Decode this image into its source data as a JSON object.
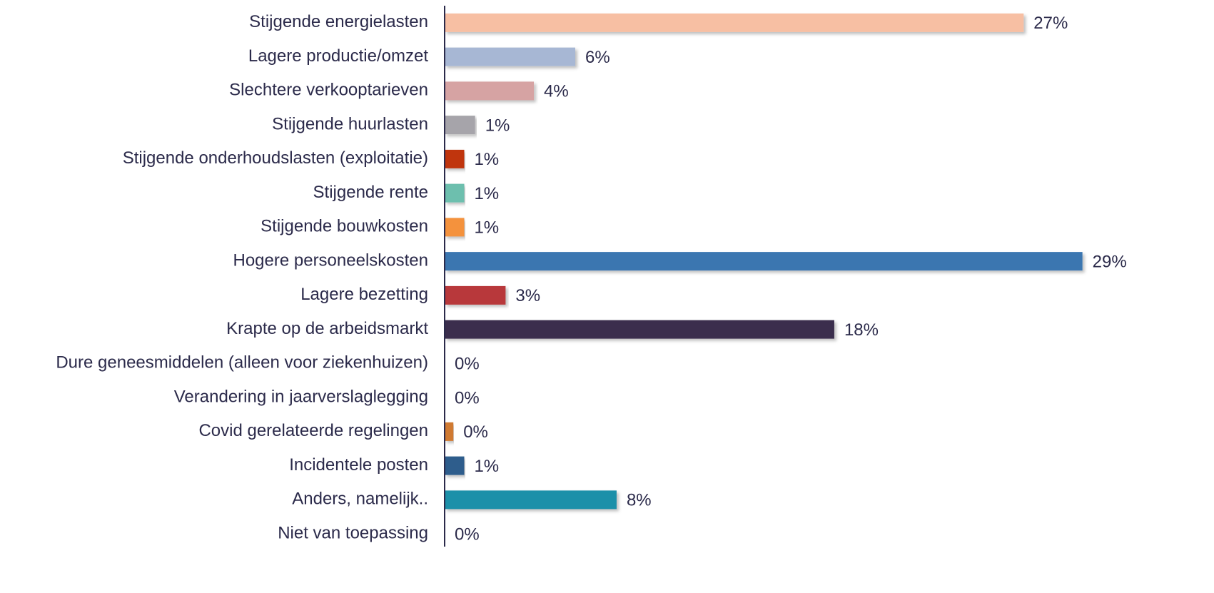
{
  "chart_data": {
    "type": "barh",
    "categories": [
      "Stijgende energielasten",
      "Lagere productie/omzet",
      "Slechtere verkooptarieven",
      "Stijgende huurlasten",
      "Stijgende onderhoudslasten (exploitatie)",
      "Stijgende rente",
      "Stijgende bouwkosten",
      "Hogere personeelskosten",
      "Lagere bezetting",
      "Krapte op de arbeidsmarkt",
      "Dure geneesmiddelen (alleen voor ziekenhuizen)",
      "Verandering in jaarverslaglegging",
      "Covid gerelateerde regelingen",
      "Incidentele posten",
      "Anders, namelijk..",
      "Niet van toepassing"
    ],
    "values": [
      26.6,
      6.0,
      4.1,
      1.4,
      0.9,
      0.9,
      0.9,
      29.3,
      2.8,
      17.9,
      0,
      0,
      0.4,
      0.9,
      7.9,
      0
    ],
    "value_labels": [
      "27%",
      "6%",
      "4%",
      "1%",
      "1%",
      "1%",
      "1%",
      "29%",
      "3%",
      "18%",
      "0%",
      "0%",
      "0%",
      "1%",
      "8%",
      "0%"
    ],
    "colors": [
      "#f7bfa3",
      "#a7b7d4",
      "#d6a3a3",
      "#a6a4aa",
      "#c0360f",
      "#6dbfae",
      "#f4923e",
      "#3a76b0",
      "#b8383a",
      "#3b2d4e",
      "#999999",
      "#999999",
      "#d07a30",
      "#2e5d8c",
      "#1f90a9",
      "#999999"
    ],
    "xlim": [
      0,
      30
    ]
  }
}
